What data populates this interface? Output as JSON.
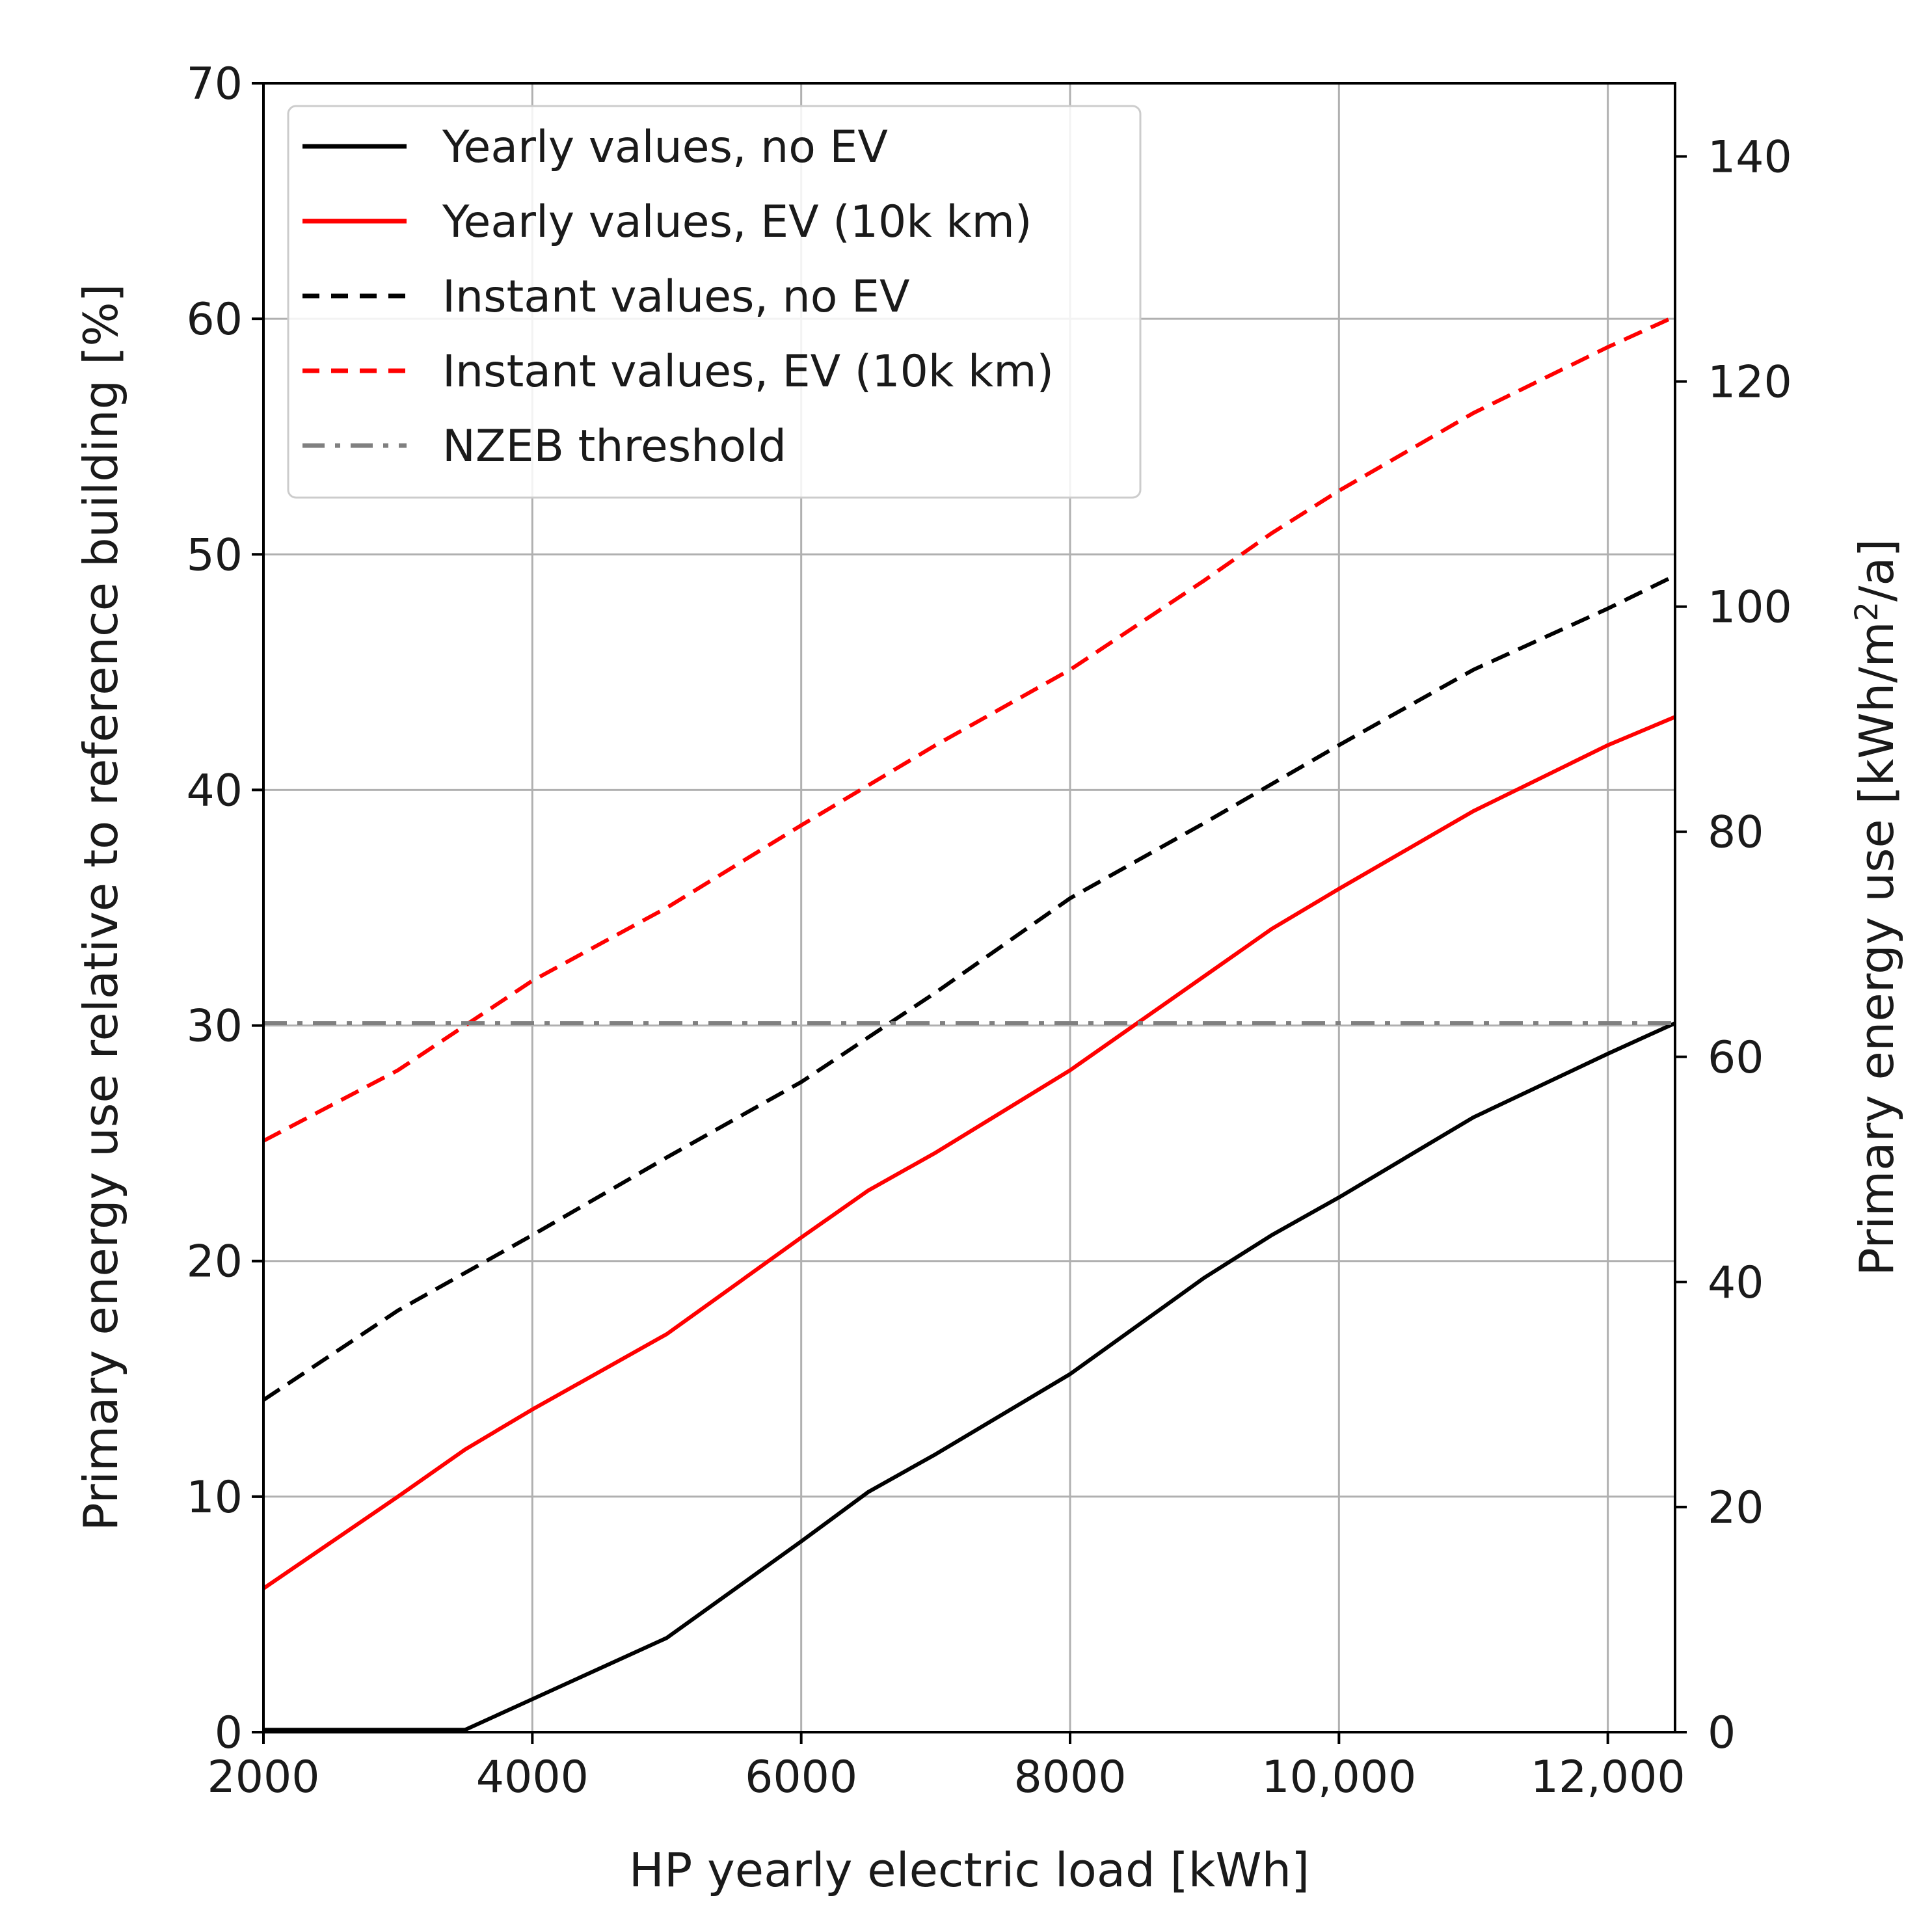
{
  "chart_data": {
    "type": "line",
    "title": "",
    "xlabel": "HP yearly electric load [kWh]",
    "ylabel": "Primary energy use relative to reference building [%]",
    "y2label_parts": [
      "Primary energy use [kWh/m",
      "2",
      "/a]"
    ],
    "xlim": [
      2000,
      12500
    ],
    "ylim": [
      0,
      70
    ],
    "y2lim": [
      0,
      146.5
    ],
    "grid": true,
    "legend_position": "top-left",
    "x_ticks": [
      2000,
      4000,
      6000,
      8000,
      10000,
      12000
    ],
    "x_tick_labels": [
      "2000",
      "4000",
      "6000",
      "8000",
      "10,000",
      "12,000"
    ],
    "y_ticks": [
      0,
      10,
      20,
      30,
      40,
      50,
      60,
      70
    ],
    "y_tick_labels": [
      "0",
      "10",
      "20",
      "30",
      "40",
      "50",
      "60",
      "70"
    ],
    "y2_ticks": [
      0,
      20,
      40,
      60,
      80,
      100,
      120,
      140
    ],
    "y2_tick_labels": [
      "0",
      "20",
      "40",
      "60",
      "80",
      "100",
      "120",
      "140"
    ],
    "series": [
      {
        "name": "Yearly values, no EV",
        "color": "#000000",
        "dash": "solid",
        "x": [
          2000,
          3500,
          4000,
          5000,
          6000,
          6500,
          7000,
          8000,
          9000,
          9500,
          10000,
          11000,
          12000,
          12500
        ],
        "y": [
          0.1,
          0.1,
          1.4,
          4.0,
          8.1,
          10.2,
          11.8,
          15.2,
          19.3,
          21.1,
          22.7,
          26.1,
          28.8,
          30.1
        ]
      },
      {
        "name": "Yearly values, EV (10k km)",
        "color": "#ff0000",
        "dash": "solid",
        "x": [
          2000,
          3000,
          3500,
          4000,
          5000,
          6000,
          6500,
          7000,
          8000,
          9000,
          9500,
          10000,
          11000,
          12000,
          12500
        ],
        "y": [
          6.1,
          10.0,
          12.0,
          13.7,
          16.9,
          21.0,
          23.0,
          24.6,
          28.1,
          32.1,
          34.1,
          35.8,
          39.1,
          41.9,
          43.1
        ]
      },
      {
        "name": "Instant values, no EV",
        "color": "#000000",
        "dash": "dashed",
        "x": [
          2000,
          3000,
          4000,
          5000,
          6000,
          7000,
          8000,
          9000,
          10000,
          11000,
          12000,
          12500
        ],
        "y": [
          14.1,
          17.9,
          21.1,
          24.4,
          27.6,
          31.4,
          35.4,
          38.6,
          41.9,
          45.1,
          47.7,
          49.1
        ]
      },
      {
        "name": "Instant values, EV (10k km)",
        "color": "#ff0000",
        "dash": "dashed",
        "x": [
          2000,
          3000,
          3500,
          4000,
          5000,
          6000,
          7000,
          8000,
          9000,
          9500,
          10000,
          11000,
          12000,
          12500
        ],
        "y": [
          25.1,
          28.1,
          30.0,
          31.9,
          35.0,
          38.5,
          41.9,
          45.1,
          48.9,
          50.9,
          52.7,
          56.0,
          58.8,
          60.1
        ]
      },
      {
        "name": "NZEB threshold",
        "color": "#808080",
        "dash": "dashdot",
        "x": [
          2000,
          12500
        ],
        "y": [
          30.1,
          30.1
        ]
      }
    ]
  }
}
